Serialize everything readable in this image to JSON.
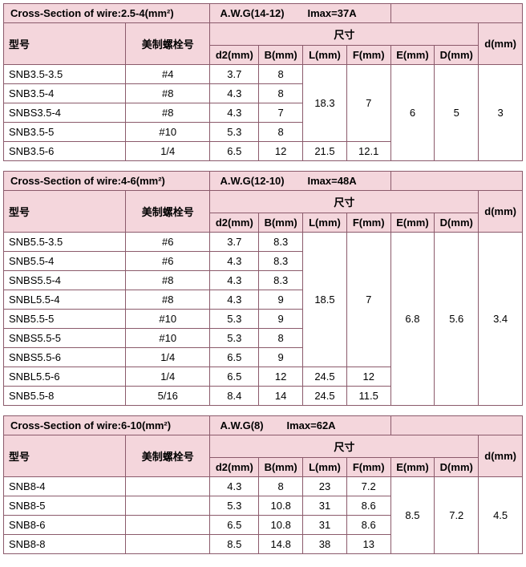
{
  "labels": {
    "model": "型号",
    "bolt": "美制螺栓号",
    "dims": "尺寸",
    "d2": "d2(mm)",
    "B": "B(mm)",
    "L": "L(mm)",
    "F": "F(mm)",
    "E": "E(mm)",
    "D": "D(mm)",
    "d": "d(mm)"
  },
  "tables": [
    {
      "cross": "Cross-Section of wire:2.5-4(mm²)",
      "awg": "A.W.G(14-12)",
      "imax": "Imax=37A",
      "E": "6",
      "D": "5",
      "d": "3",
      "group1": {
        "L": "18.3",
        "F": "7",
        "rows": [
          {
            "m": "SNB3.5-3.5",
            "b": "#4",
            "d2": "3.7",
            "B": "8"
          },
          {
            "m": "SNB3.5-4",
            "b": "#8",
            "d2": "4.3",
            "B": "8"
          },
          {
            "m": "SNBS3.5-4",
            "b": "#8",
            "d2": "4.3",
            "B": "7"
          },
          {
            "m": "SNB3.5-5",
            "b": "#10",
            "d2": "5.3",
            "B": "8"
          }
        ]
      },
      "tail": [
        {
          "m": "SNB3.5-6",
          "b": "1/4",
          "d2": "6.5",
          "B": "12",
          "L": "21.5",
          "F": "12.1"
        }
      ]
    },
    {
      "cross": "Cross-Section of wire:4-6(mm²)",
      "awg": "A.W.G(12-10)",
      "imax": "Imax=48A",
      "E": "6.8",
      "D": "5.6",
      "d": "3.4",
      "group1": {
        "L": "18.5",
        "F": "7",
        "rows": [
          {
            "m": "SNB5.5-3.5",
            "b": "#6",
            "d2": "3.7",
            "B": "8.3"
          },
          {
            "m": "SNB5.5-4",
            "b": "#6",
            "d2": "4.3",
            "B": "8.3"
          },
          {
            "m": "SNBS5.5-4",
            "b": "#8",
            "d2": "4.3",
            "B": "8.3"
          },
          {
            "m": "SNBL5.5-4",
            "b": "#8",
            "d2": "4.3",
            "B": "9"
          },
          {
            "m": "SNB5.5-5",
            "b": "#10",
            "d2": "5.3",
            "B": "9"
          },
          {
            "m": "SNBS5.5-5",
            "b": "#10",
            "d2": "5.3",
            "B": "8"
          },
          {
            "m": "SNBS5.5-6",
            "b": "1/4",
            "d2": "6.5",
            "B": "9"
          }
        ]
      },
      "tail": [
        {
          "m": "SNBL5.5-6",
          "b": "1/4",
          "d2": "6.5",
          "B": "12",
          "L": "24.5",
          "F": "12"
        },
        {
          "m": "SNB5.5-8",
          "b": "5/16",
          "d2": "8.4",
          "B": "14",
          "L": "24.5",
          "F": "11.5"
        }
      ]
    },
    {
      "cross": "Cross-Section of wire:6-10(mm²)",
      "awg": "A.W.G(8)",
      "imax": "Imax=62A",
      "E": "8.5",
      "D": "7.2",
      "d": "4.5",
      "rows": [
        {
          "m": "SNB8-4",
          "b": "",
          "d2": "4.3",
          "B": "8",
          "L": "23",
          "F": "7.2"
        },
        {
          "m": "SNB8-5",
          "b": "",
          "d2": "5.3",
          "B": "10.8",
          "L": "31",
          "F": "8.6"
        },
        {
          "m": "SNB8-6",
          "b": "",
          "d2": "6.5",
          "B": "10.8",
          "L": "31",
          "F": "8.6"
        },
        {
          "m": "SNB8-8",
          "b": "",
          "d2": "8.5",
          "B": "14.8",
          "L": "38",
          "F": "13"
        }
      ]
    }
  ],
  "colors": {
    "header_bg": "#f4d6dc",
    "border": "#8b5a6b",
    "text": "#000000",
    "bg": "#ffffff"
  }
}
